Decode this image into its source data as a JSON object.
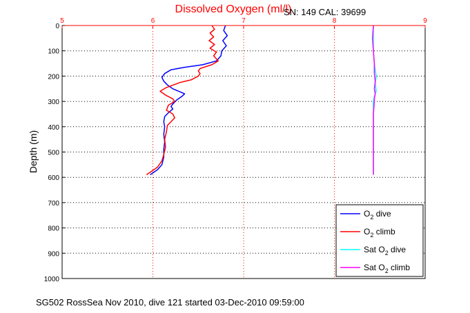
{
  "chart_data": {
    "type": "line",
    "title": "Dissolved Oxygen (ml/l)",
    "annotation_top_right": "SN: 149  CAL: 39699",
    "ylabel": "Depth (m)",
    "xlabel": "",
    "footer": "SG502 RossSea Nov 2010, dive 121 started 03-Dec-2010 09:59:00",
    "xlim": [
      5,
      9
    ],
    "ylim": [
      0,
      1000
    ],
    "y_reversed": true,
    "x_axis_position": "top",
    "x_ticks": [
      "5",
      "6",
      "7",
      "8",
      "9"
    ],
    "y_ticks": [
      "0",
      "100",
      "200",
      "300",
      "400",
      "500",
      "600",
      "700",
      "800",
      "900",
      "1000"
    ],
    "grid": true,
    "legend_position": "bottom-right",
    "colors": {
      "title": "#ff0000",
      "x_axis": "#ff0000",
      "grid_x": "#ff0000",
      "grid_y": "#000000"
    },
    "series": [
      {
        "name": "O2 dive",
        "legend_main": "O",
        "legend_sub": "2",
        "legend_suffix": " dive",
        "color": "#0000ff",
        "dash": "",
        "points": [
          [
            6.8,
            0
          ],
          [
            6.78,
            20
          ],
          [
            6.82,
            40
          ],
          [
            6.77,
            60
          ],
          [
            6.81,
            80
          ],
          [
            6.76,
            100
          ],
          [
            6.75,
            120
          ],
          [
            6.7,
            140
          ],
          [
            6.55,
            155
          ],
          [
            6.35,
            165
          ],
          [
            6.2,
            175
          ],
          [
            6.13,
            190
          ],
          [
            6.1,
            205
          ],
          [
            6.12,
            220
          ],
          [
            6.16,
            235
          ],
          [
            6.22,
            250
          ],
          [
            6.3,
            262
          ],
          [
            6.35,
            270
          ],
          [
            6.32,
            280
          ],
          [
            6.26,
            295
          ],
          [
            6.22,
            310
          ],
          [
            6.2,
            320
          ],
          [
            6.22,
            330
          ],
          [
            6.17,
            345
          ],
          [
            6.13,
            360
          ],
          [
            6.12,
            380
          ],
          [
            6.13,
            400
          ],
          [
            6.12,
            430
          ],
          [
            6.13,
            460
          ],
          [
            6.12,
            490
          ],
          [
            6.12,
            520
          ],
          [
            6.1,
            550
          ],
          [
            6.05,
            570
          ],
          [
            5.97,
            590
          ]
        ]
      },
      {
        "name": "O2 climb",
        "legend_main": "O",
        "legend_sub": "2",
        "legend_suffix": " climb",
        "color": "#ff0000",
        "dash": "",
        "points": [
          [
            6.65,
            0
          ],
          [
            6.68,
            15
          ],
          [
            6.63,
            30
          ],
          [
            6.67,
            45
          ],
          [
            6.62,
            60
          ],
          [
            6.68,
            75
          ],
          [
            6.63,
            90
          ],
          [
            6.7,
            105
          ],
          [
            6.67,
            120
          ],
          [
            6.72,
            140
          ],
          [
            6.65,
            155
          ],
          [
            6.52,
            170
          ],
          [
            6.5,
            180
          ],
          [
            6.52,
            190
          ],
          [
            6.5,
            200
          ],
          [
            6.42,
            215
          ],
          [
            6.3,
            225
          ],
          [
            6.15,
            245
          ],
          [
            6.08,
            260
          ],
          [
            6.14,
            275
          ],
          [
            6.22,
            290
          ],
          [
            6.24,
            300
          ],
          [
            6.17,
            315
          ],
          [
            6.15,
            335
          ],
          [
            6.22,
            350
          ],
          [
            6.24,
            365
          ],
          [
            6.2,
            380
          ],
          [
            6.16,
            395
          ],
          [
            6.15,
            420
          ],
          [
            6.13,
            450
          ],
          [
            6.14,
            480
          ],
          [
            6.12,
            510
          ],
          [
            6.1,
            535
          ],
          [
            6.05,
            560
          ],
          [
            5.97,
            580
          ],
          [
            5.93,
            590
          ]
        ]
      },
      {
        "name": "Sat O2 dive",
        "legend_main": "Sat O",
        "legend_sub": "2",
        "legend_suffix": " dive",
        "color": "#00ffff",
        "dash": "",
        "points": [
          [
            8.43,
            0
          ],
          [
            8.43,
            100
          ],
          [
            8.44,
            150
          ],
          [
            8.46,
            200
          ],
          [
            8.45,
            230
          ],
          [
            8.46,
            260
          ],
          [
            8.44,
            280
          ],
          [
            8.43,
            300
          ],
          [
            8.43,
            350
          ],
          [
            8.43,
            400
          ],
          [
            8.43,
            450
          ],
          [
            8.43,
            500
          ],
          [
            8.43,
            550
          ],
          [
            8.43,
            590
          ]
        ]
      },
      {
        "name": "Sat O2 climb",
        "legend_main": "Sat O",
        "legend_sub": "2",
        "legend_suffix": " climb",
        "color": "#ff00ff",
        "dash": "",
        "points": [
          [
            8.43,
            0
          ],
          [
            8.42,
            50
          ],
          [
            8.43,
            100
          ],
          [
            8.44,
            150
          ],
          [
            8.44,
            190
          ],
          [
            8.45,
            220
          ],
          [
            8.44,
            250
          ],
          [
            8.45,
            270
          ],
          [
            8.44,
            290
          ],
          [
            8.44,
            300
          ],
          [
            8.43,
            350
          ],
          [
            8.43,
            400
          ],
          [
            8.43,
            450
          ],
          [
            8.43,
            500
          ],
          [
            8.43,
            550
          ],
          [
            8.43,
            590
          ]
        ]
      }
    ]
  }
}
